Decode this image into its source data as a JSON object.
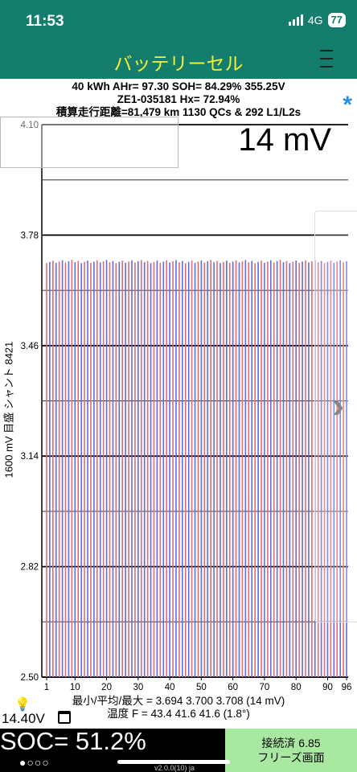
{
  "status_bar": {
    "time": "11:53",
    "network": "4G",
    "battery": "77"
  },
  "app": {
    "title": "バッテリーセル"
  },
  "info": {
    "line1": "40 kWh  AHr= 97.30  SOH= 84.29%   355.25V",
    "line2": "ZE1-035181   Hx= 72.94%",
    "line3": "積算走行距離=81,479 km 1130 QCs & 292 L1/L2s"
  },
  "delta_mv": "14 mV",
  "y_axis_title": "1600 mV 目盛  シャント 8421",
  "chart_data": {
    "type": "bar",
    "title": "",
    "xlabel": "",
    "ylabel": "1600 mV 目盛  シャント 8421",
    "ylim": [
      2.5,
      4.1
    ],
    "y_ticks": [
      "4.10",
      "3.78",
      "3.46",
      "3.14",
      "2.82",
      "2.50"
    ],
    "x_ticks": [
      "1",
      "10",
      "20",
      "30",
      "40",
      "50",
      "60",
      "70",
      "80",
      "90",
      "96"
    ],
    "cell_count": 96,
    "min": 3.694,
    "avg": 3.7,
    "max": 3.708,
    "series_colors": [
      "#e86a6a",
      "#5a6ee6"
    ],
    "grid": true
  },
  "stats": {
    "voltage_line": "最小/平均/最大 = 3.694 3.700 3.708  (14 mV)",
    "temp_line": "温度 F = 43.4  41.6  41.6  (1.8°)"
  },
  "battery_voltage": "14.40V",
  "soc": "SOC= 51.2%",
  "page_dots": "●○○○",
  "connection": {
    "status": "接続済 6.85",
    "freeze": "フリーズ画面"
  },
  "version": "v2.0.0(10) ja"
}
